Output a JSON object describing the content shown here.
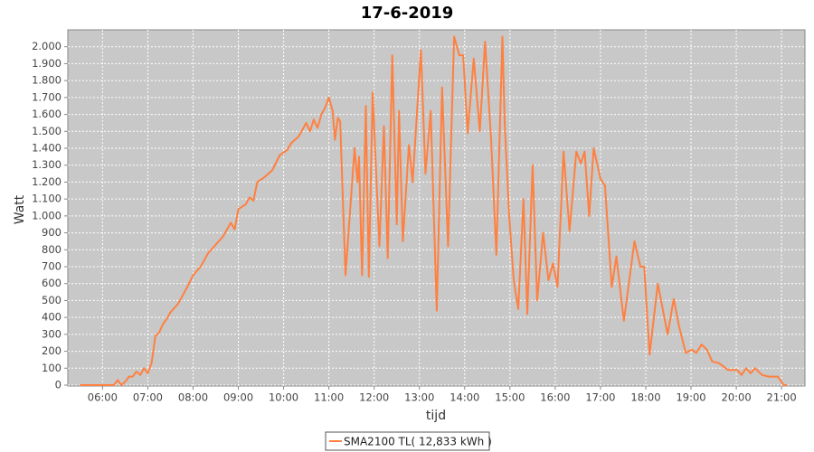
{
  "chart_data": {
    "type": "line",
    "title": "17-6-2019",
    "x_label": "tijd",
    "y_label": "Watt",
    "x": [
      "05:30",
      "06:15",
      "06:20",
      "06:25",
      "06:30",
      "06:35",
      "06:40",
      "06:45",
      "06:50",
      "06:55",
      "07:00",
      "07:05",
      "07:10",
      "07:15",
      "07:20",
      "07:25",
      "07:30",
      "07:40",
      "07:50",
      "08:00",
      "08:10",
      "08:20",
      "08:30",
      "08:40",
      "08:50",
      "08:55",
      "09:00",
      "09:10",
      "09:15",
      "09:20",
      "09:25",
      "09:35",
      "09:45",
      "09:55",
      "10:05",
      "10:10",
      "10:20",
      "10:30",
      "10:35",
      "10:40",
      "10:45",
      "10:50",
      "10:55",
      "11:00",
      "11:05",
      "11:08",
      "11:12",
      "11:15",
      "11:22",
      "11:34",
      "11:38",
      "11:40",
      "11:44",
      "11:49",
      "11:53",
      "11:58",
      "12:07",
      "12:13",
      "12:18",
      "12:24",
      "12:30",
      "12:33",
      "12:38",
      "12:46",
      "12:51",
      "13:02",
      "13:08",
      "13:15",
      "13:23",
      "13:30",
      "13:38",
      "13:46",
      "13:53",
      "13:58",
      "14:04",
      "14:12",
      "14:20",
      "14:27",
      "14:35",
      "14:42",
      "14:50",
      "14:53",
      "14:59",
      "15:05",
      "15:11",
      "15:18",
      "15:23",
      "15:30",
      "15:36",
      "15:44",
      "15:51",
      "15:57",
      "16:03",
      "16:11",
      "16:19",
      "16:28",
      "16:34",
      "16:39",
      "16:45",
      "16:51",
      "17:00",
      "17:06",
      "17:15",
      "17:21",
      "17:31",
      "17:45",
      "17:53",
      "17:58",
      "18:05",
      "18:16",
      "18:29",
      "18:37",
      "18:44",
      "18:53",
      "19:01",
      "19:07",
      "19:14",
      "19:21",
      "19:28",
      "19:37",
      "19:49",
      "20:01",
      "20:07",
      "20:13",
      "20:19",
      "20:25",
      "20:34",
      "20:43",
      "20:55",
      "21:03",
      "21:07"
    ],
    "series": [
      {
        "name": "SMA2100 TL( 12,833 kWh )",
        "color": "#ff8040",
        "values": [
          0,
          0,
          30,
          0,
          20,
          50,
          50,
          80,
          60,
          100,
          70,
          130,
          290,
          310,
          360,
          390,
          430,
          480,
          560,
          650,
          700,
          780,
          830,
          880,
          960,
          920,
          1040,
          1070,
          1110,
          1090,
          1200,
          1230,
          1270,
          1360,
          1390,
          1430,
          1470,
          1550,
          1500,
          1570,
          1520,
          1600,
          1640,
          1700,
          1620,
          1450,
          1580,
          1560,
          650,
          1400,
          1200,
          1350,
          650,
          1650,
          640,
          1730,
          820,
          1530,
          750,
          1950,
          950,
          1620,
          850,
          1420,
          1200,
          1980,
          1250,
          1620,
          440,
          1760,
          820,
          2060,
          1950,
          1950,
          1490,
          1930,
          1500,
          2030,
          1450,
          770,
          2060,
          1550,
          1000,
          620,
          450,
          1100,
          420,
          1300,
          500,
          900,
          620,
          720,
          580,
          1380,
          910,
          1380,
          1310,
          1380,
          1000,
          1400,
          1220,
          1180,
          580,
          760,
          380,
          850,
          700,
          700,
          180,
          600,
          300,
          510,
          350,
          190,
          210,
          190,
          240,
          210,
          140,
          130,
          90,
          90,
          60,
          100,
          70,
          100,
          60,
          50,
          50,
          0,
          0
        ]
      }
    ],
    "xlim": [
      "05:14",
      "21:31"
    ],
    "xticks": [
      "06:00",
      "07:00",
      "08:00",
      "09:00",
      "10:00",
      "11:00",
      "12:00",
      "13:00",
      "14:00",
      "15:00",
      "16:00",
      "17:00",
      "18:00",
      "19:00",
      "20:00",
      "21:00"
    ],
    "ylim": [
      0,
      2100
    ],
    "yticks": [
      0,
      100,
      200,
      300,
      400,
      500,
      600,
      700,
      800,
      900,
      {
        "value": 1000,
        "label": "1.000"
      },
      {
        "value": 1100,
        "label": "1.100"
      },
      {
        "value": 1200,
        "label": "1.200"
      },
      {
        "value": 1300,
        "label": "1.300"
      },
      {
        "value": 1400,
        "label": "1.400"
      },
      {
        "value": 1500,
        "label": "1.500"
      },
      {
        "value": 1600,
        "label": "1.600"
      },
      {
        "value": 1700,
        "label": "1.700"
      },
      {
        "value": 1800,
        "label": "1.800"
      },
      {
        "value": 1900,
        "label": "1.900"
      },
      {
        "value": 2000,
        "label": "2.000"
      }
    ],
    "grid": true
  }
}
